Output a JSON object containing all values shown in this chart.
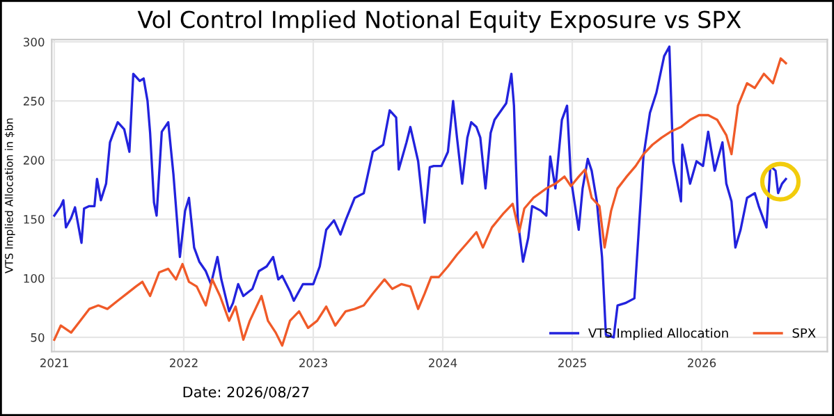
{
  "chart_data": {
    "type": "line",
    "title": "Vol Control Implied Notional Equity Exposure vs SPX",
    "ylabel": "VTS Implied Allocation in $bn",
    "xlim": [
      2020.98,
      2026.97
    ],
    "xticks": [
      2021,
      2022,
      2023,
      2024,
      2025,
      2026
    ],
    "ylim": [
      38,
      302
    ],
    "yticks": [
      50,
      100,
      150,
      200,
      250,
      300
    ],
    "grid": true,
    "legend": "bottom right",
    "marker": "none",
    "line_style": "solid",
    "annotations": [
      "Date: 2026/08/27"
    ],
    "series": [
      {
        "name": "VTS Implied Allocation",
        "color": "#2222dd",
        "x": [
          2021.0,
          2021.05,
          2021.07,
          2021.09,
          2021.13,
          2021.16,
          2021.21,
          2021.23,
          2021.27,
          2021.31,
          2021.33,
          2021.36,
          2021.4,
          2021.43,
          2021.45,
          2021.49,
          2021.54,
          2021.58,
          2021.61,
          2021.66,
          2021.69,
          2021.72,
          2021.74,
          2021.77,
          2021.79,
          2021.83,
          2021.88,
          2021.92,
          2021.97,
          2022.01,
          2022.04,
          2022.08,
          2022.12,
          2022.17,
          2022.21,
          2022.26,
          2022.29,
          2022.35,
          2022.38,
          2022.42,
          2022.46,
          2022.53,
          2022.58,
          2022.64,
          2022.69,
          2022.73,
          2022.76,
          2022.82,
          2022.85,
          2022.92,
          2023.0,
          2023.05,
          2023.1,
          2023.16,
          2023.21,
          2023.25,
          2023.32,
          2023.39,
          2023.46,
          2023.54,
          2023.59,
          2023.64,
          2023.66,
          2023.72,
          2023.75,
          2023.81,
          2023.86,
          2023.9,
          2023.93,
          2023.99,
          2024.04,
          2024.08,
          2024.11,
          2024.15,
          2024.19,
          2024.22,
          2024.26,
          2024.29,
          2024.33,
          2024.37,
          2024.4,
          2024.49,
          2024.53,
          2024.55,
          2024.58,
          2024.62,
          2024.66,
          2024.69,
          2024.76,
          2024.8,
          2024.83,
          2024.87,
          2024.92,
          2024.96,
          2024.99,
          2025.05,
          2025.08,
          2025.12,
          2025.15,
          2025.19,
          2025.23,
          2025.26,
          2025.32,
          2025.35,
          2025.41,
          2025.48,
          2025.51,
          2025.55,
          2025.6,
          2025.65,
          2025.71,
          2025.75,
          2025.78,
          2025.84,
          2025.85,
          2025.91,
          2025.96,
          2026.01,
          2026.05,
          2026.1,
          2026.16,
          2026.19,
          2026.23,
          2026.26,
          2026.3,
          2026.35,
          2026.41,
          2026.44,
          2026.5,
          2026.53,
          2026.57,
          2026.59,
          2026.62,
          2026.65
        ],
        "values": [
          153,
          161,
          166,
          143,
          151,
          160,
          130,
          159,
          161,
          161,
          184,
          166,
          180,
          215,
          221,
          232,
          226,
          207,
          273,
          267,
          269,
          250,
          223,
          164,
          153,
          224,
          232,
          188,
          118,
          157,
          168,
          126,
          114,
          106,
          95,
          118,
          99,
          72,
          79,
          95,
          85,
          91,
          106,
          110,
          118,
          99,
          102,
          89,
          81,
          95,
          95,
          110,
          141,
          149,
          137,
          149,
          168,
          172,
          207,
          213,
          242,
          236,
          192,
          215,
          228,
          199,
          147,
          194,
          195,
          195,
          207,
          250,
          219,
          180,
          219,
          232,
          228,
          219,
          176,
          223,
          234,
          248,
          273,
          246,
          149,
          114,
          134,
          161,
          157,
          153,
          203,
          176,
          234,
          246,
          184,
          141,
          176,
          201,
          191,
          165,
          118,
          52,
          50,
          77,
          79,
          83,
          134,
          203,
          240,
          257,
          288,
          296,
          199,
          165,
          213,
          180,
          199,
          195,
          224,
          191,
          215,
          180,
          165,
          126,
          141,
          168,
          172,
          161,
          143,
          195,
          191,
          172,
          180,
          184
        ]
      },
      {
        "name": "SPX",
        "color": "#f05a28",
        "x": [
          2021.0,
          2021.05,
          2021.13,
          2021.2,
          2021.27,
          2021.34,
          2021.41,
          2021.49,
          2021.56,
          2021.63,
          2021.68,
          2021.74,
          2021.81,
          2021.88,
          2021.94,
          2021.99,
          2022.04,
          2022.1,
          2022.17,
          2022.22,
          2022.28,
          2022.35,
          2022.4,
          2022.46,
          2022.51,
          2022.6,
          2022.65,
          2022.71,
          2022.76,
          2022.82,
          2022.89,
          2022.96,
          2023.03,
          2023.1,
          2023.17,
          2023.25,
          2023.32,
          2023.39,
          2023.46,
          2023.55,
          2023.61,
          2023.68,
          2023.75,
          2023.81,
          2023.86,
          2023.91,
          2023.97,
          2024.04,
          2024.11,
          2024.19,
          2024.26,
          2024.31,
          2024.38,
          2024.47,
          2024.54,
          2024.59,
          2024.63,
          2024.7,
          2024.8,
          2024.87,
          2024.94,
          2024.99,
          2025.05,
          2025.1,
          2025.15,
          2025.21,
          2025.25,
          2025.3,
          2025.35,
          2025.42,
          2025.49,
          2025.55,
          2025.62,
          2025.69,
          2025.76,
          2025.84,
          2025.91,
          2025.98,
          2026.05,
          2026.12,
          2026.19,
          2026.23,
          2026.28,
          2026.35,
          2026.41,
          2026.48,
          2026.55,
          2026.61,
          2026.65
        ],
        "values": [
          48,
          60,
          54,
          64,
          74,
          77,
          74,
          81,
          87,
          93,
          97,
          85,
          105,
          108,
          99,
          112,
          97,
          93,
          77,
          99,
          85,
          64,
          76,
          48,
          64,
          85,
          64,
          54,
          43,
          64,
          72,
          58,
          64,
          76,
          60,
          72,
          74,
          77,
          87,
          99,
          91,
          95,
          93,
          74,
          87,
          101,
          101,
          110,
          120,
          130,
          139,
          126,
          143,
          155,
          163,
          139,
          159,
          168,
          176,
          180,
          186,
          178,
          186,
          192,
          168,
          161,
          126,
          157,
          176,
          186,
          195,
          205,
          213,
          219,
          224,
          228,
          234,
          238,
          238,
          234,
          221,
          205,
          246,
          265,
          261,
          273,
          265,
          286,
          282
        ]
      }
    ]
  }
}
